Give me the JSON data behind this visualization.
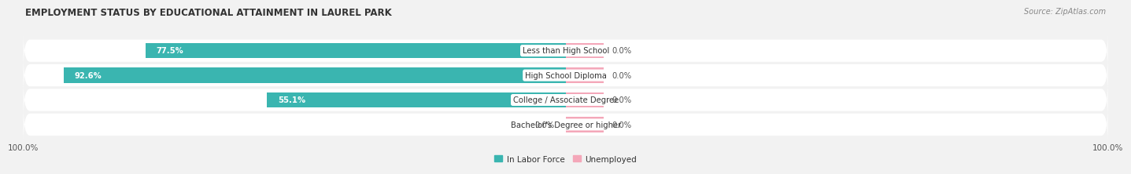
{
  "title": "EMPLOYMENT STATUS BY EDUCATIONAL ATTAINMENT IN LAUREL PARK",
  "source": "Source: ZipAtlas.com",
  "categories": [
    "Less than High School",
    "High School Diploma",
    "College / Associate Degree",
    "Bachelor's Degree or higher"
  ],
  "labor_force_values": [
    77.5,
    92.6,
    55.1,
    0.0
  ],
  "unemployed_values": [
    0.0,
    0.0,
    0.0,
    0.0
  ],
  "labor_force_color": "#3ab5b0",
  "unemployed_color": "#f4a7b9",
  "bg_color": "#f2f2f2",
  "bar_height": 0.62,
  "xlim_left": -100,
  "xlim_right": 100,
  "left_tick_label": "100.0%",
  "right_tick_label": "100.0%",
  "title_fontsize": 8.5,
  "label_fontsize": 7.2,
  "value_fontsize": 7.2,
  "tick_fontsize": 7.5,
  "legend_fontsize": 7.5,
  "source_fontsize": 7,
  "unemployed_bar_width": 7.0,
  "unemployed_min_show": 1.5
}
